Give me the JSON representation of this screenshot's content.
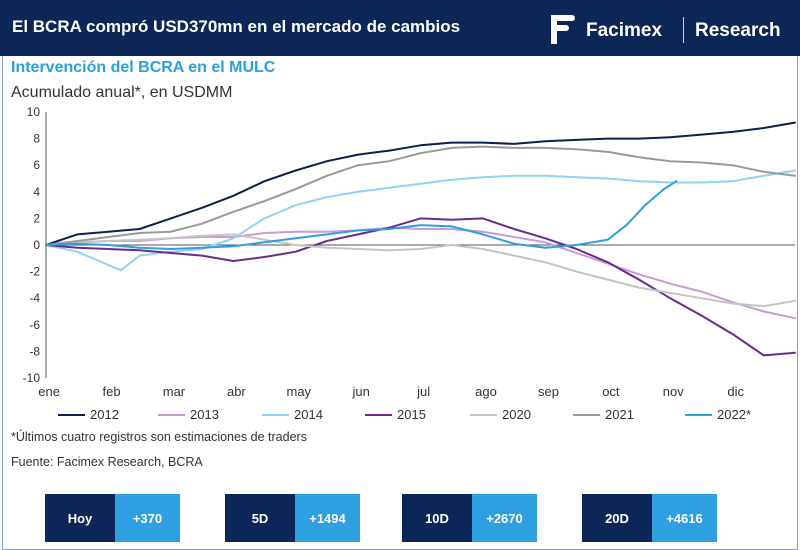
{
  "header": {
    "title": "El BCRA compró USD370mn en el mercado de cambios",
    "brand_name": "Facimex",
    "brand_section": "Research"
  },
  "chart_data": {
    "type": "line",
    "title": "Intervención del BCRA en el MULC",
    "ylabel": "Acumulado anual*, en USDMM",
    "xlabel": "",
    "categories": [
      "ene",
      "feb",
      "mar",
      "abr",
      "may",
      "jun",
      "jul",
      "ago",
      "sep",
      "oct",
      "nov",
      "dic"
    ],
    "xlim": [
      0,
      12
    ],
    "ylim": [
      -10,
      10
    ],
    "yticks": [
      -10,
      -8,
      -6,
      -4,
      -2,
      0,
      2,
      4,
      6,
      8,
      10
    ],
    "grid": false,
    "legend_position": "bottom",
    "series": [
      {
        "name": "2012",
        "color": "#0d1f4d",
        "x": [
          0,
          0.5,
          1,
          1.5,
          2,
          2.5,
          3,
          3.5,
          4,
          4.5,
          5,
          5.5,
          6,
          6.5,
          7,
          7.5,
          8,
          8.5,
          9,
          9.5,
          10,
          10.5,
          11,
          11.5,
          12
        ],
        "y": [
          0,
          0.8,
          1.0,
          1.2,
          2.0,
          2.8,
          3.7,
          4.8,
          5.6,
          6.3,
          6.8,
          7.1,
          7.5,
          7.7,
          7.7,
          7.6,
          7.8,
          7.9,
          8.0,
          8.0,
          8.1,
          8.3,
          8.5,
          8.8,
          9.2
        ]
      },
      {
        "name": "2013",
        "color": "#c89ad6",
        "x": [
          0,
          0.5,
          1,
          1.5,
          2,
          2.5,
          3,
          3.5,
          4,
          4.5,
          5,
          5.5,
          6,
          6.5,
          7,
          7.5,
          8,
          8.5,
          9,
          9.5,
          10,
          10.5,
          11,
          11.5,
          12
        ],
        "y": [
          0,
          0.2,
          0.3,
          0.3,
          0.5,
          0.6,
          0.6,
          0.9,
          1.0,
          1.0,
          1.1,
          1.3,
          1.2,
          1.2,
          1.0,
          0.6,
          0.2,
          -0.6,
          -1.4,
          -2.2,
          -2.9,
          -3.5,
          -4.3,
          -5.0,
          -5.5
        ]
      },
      {
        "name": "2014",
        "color": "#8fd3f2",
        "x": [
          0,
          0.5,
          1,
          1.2,
          1.5,
          2,
          2.5,
          3,
          3.5,
          4,
          4.5,
          5,
          5.5,
          6,
          6.5,
          7,
          7.5,
          8,
          8.5,
          9,
          9.5,
          10,
          10.5,
          11,
          11.5,
          12
        ],
        "y": [
          0,
          -0.5,
          -1.5,
          -1.9,
          -0.8,
          -0.5,
          -0.3,
          0.5,
          2.0,
          3.0,
          3.6,
          4.0,
          4.3,
          4.6,
          4.9,
          5.1,
          5.2,
          5.2,
          5.1,
          5.0,
          4.8,
          4.7,
          4.7,
          4.8,
          5.2,
          5.6
        ]
      },
      {
        "name": "2015",
        "color": "#6a2a8e",
        "x": [
          0,
          0.5,
          1,
          1.5,
          2,
          2.5,
          3,
          3.5,
          4,
          4.5,
          5,
          5.5,
          6,
          6.5,
          7,
          7.5,
          8,
          8.5,
          9,
          9.5,
          10,
          10.5,
          11,
          11.5,
          12
        ],
        "y": [
          0,
          -0.2,
          -0.3,
          -0.4,
          -0.6,
          -0.8,
          -1.2,
          -0.9,
          -0.5,
          0.3,
          0.8,
          1.3,
          2.0,
          1.9,
          2.0,
          1.2,
          0.5,
          -0.3,
          -1.3,
          -2.6,
          -4.0,
          -5.3,
          -6.7,
          -8.3,
          -8.1
        ]
      },
      {
        "name": "2020",
        "color": "#c4c4c4",
        "x": [
          0,
          0.5,
          1,
          1.5,
          2,
          2.5,
          3,
          3.5,
          4,
          4.5,
          5,
          5.5,
          6,
          6.5,
          7,
          7.5,
          8,
          8.5,
          9,
          9.5,
          10,
          10.5,
          11,
          11.5,
          12
        ],
        "y": [
          0,
          0.2,
          0.3,
          0.4,
          0.5,
          0.7,
          0.8,
          0.4,
          0.0,
          -0.2,
          -0.3,
          -0.4,
          -0.3,
          0.0,
          -0.3,
          -0.8,
          -1.3,
          -2.0,
          -2.6,
          -3.2,
          -3.6,
          -4.0,
          -4.4,
          -4.6,
          -4.2
        ]
      },
      {
        "name": "2021",
        "color": "#9a9a9a",
        "x": [
          0,
          0.5,
          1,
          1.5,
          2,
          2.5,
          3,
          3.5,
          4,
          4.5,
          5,
          5.5,
          6,
          6.5,
          7,
          7.5,
          8,
          8.5,
          9,
          9.5,
          10,
          10.5,
          11,
          11.5,
          12
        ],
        "y": [
          0,
          0.3,
          0.6,
          0.9,
          1.0,
          1.6,
          2.5,
          3.3,
          4.2,
          5.2,
          6.0,
          6.3,
          6.9,
          7.3,
          7.4,
          7.3,
          7.3,
          7.2,
          7.0,
          6.6,
          6.3,
          6.2,
          6.0,
          5.5,
          5.2
        ]
      },
      {
        "name": "2022*",
        "color": "#2e9fe0",
        "x": [
          0,
          0.5,
          1,
          1.5,
          2,
          2.5,
          3,
          3.5,
          4,
          4.5,
          5,
          5.5,
          6,
          6.5,
          7,
          7.5,
          8,
          8.5,
          9,
          9.3,
          9.6,
          9.9,
          10.1
        ],
        "y": [
          0,
          0.1,
          0.0,
          -0.2,
          -0.3,
          -0.2,
          -0.1,
          0.2,
          0.5,
          0.8,
          1.1,
          1.2,
          1.5,
          1.4,
          0.8,
          0.1,
          -0.2,
          0.0,
          0.4,
          1.5,
          3.0,
          4.2,
          4.8
        ]
      }
    ]
  },
  "footnotes": {
    "note": "*Últimos cuatro registros son estimaciones de traders",
    "source": "Fuente: Facimex Research, BCRA"
  },
  "stats": [
    {
      "label": "Hoy",
      "value": "+370"
    },
    {
      "label": "5D",
      "value": "+1494"
    },
    {
      "label": "10D",
      "value": "+2670"
    },
    {
      "label": "20D",
      "value": "+4616"
    }
  ],
  "colors": {
    "navy": "#0c2657",
    "accent": "#2e9fe0",
    "subtitle": "#2a9fd8"
  }
}
